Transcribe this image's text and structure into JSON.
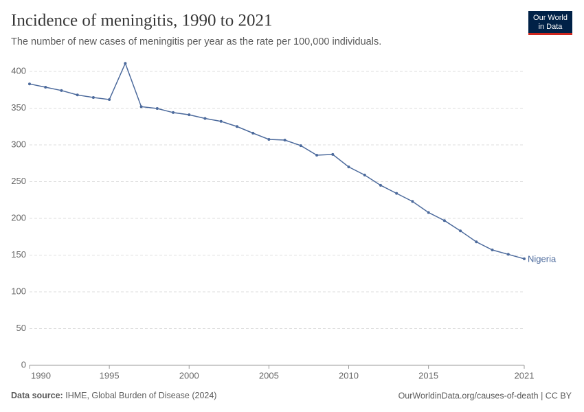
{
  "chart_data": {
    "type": "line",
    "title": "Incidence of meningitis, 1990 to 2021",
    "subtitle": "The number of new cases of meningitis per year as the rate per 100,000 individuals.",
    "logo": [
      "Our World",
      "in Data"
    ],
    "source_label": "Data source:",
    "source": "IHME, Global Burden of Disease (2024)",
    "footer_right": "OurWorldinData.org/causes-of-death | CC BY",
    "x": [
      1990,
      1991,
      1992,
      1993,
      1994,
      1995,
      1996,
      1997,
      1998,
      1999,
      2000,
      2001,
      2002,
      2003,
      2004,
      2005,
      2006,
      2007,
      2008,
      2009,
      2010,
      2011,
      2012,
      2013,
      2014,
      2015,
      2016,
      2017,
      2018,
      2019,
      2020,
      2021
    ],
    "series": [
      {
        "name": "Nigeria",
        "color": "#4c6a9c",
        "values": [
          383,
          378.5,
          374,
          368,
          364.5,
          361.7,
          411,
          352,
          349.5,
          344,
          341,
          336,
          332,
          325,
          316,
          307.5,
          306.5,
          299,
          286,
          287,
          270,
          259,
          245,
          234,
          223,
          208,
          197,
          183,
          168,
          157,
          151,
          145
        ]
      }
    ],
    "xlim": [
      1990,
      2021
    ],
    "xticks": [
      1990,
      1995,
      2000,
      2005,
      2010,
      2015,
      2021
    ],
    "ylim": [
      0,
      400
    ],
    "yticks": [
      0,
      50,
      100,
      150,
      200,
      250,
      300,
      350,
      400
    ],
    "grid": true
  }
}
